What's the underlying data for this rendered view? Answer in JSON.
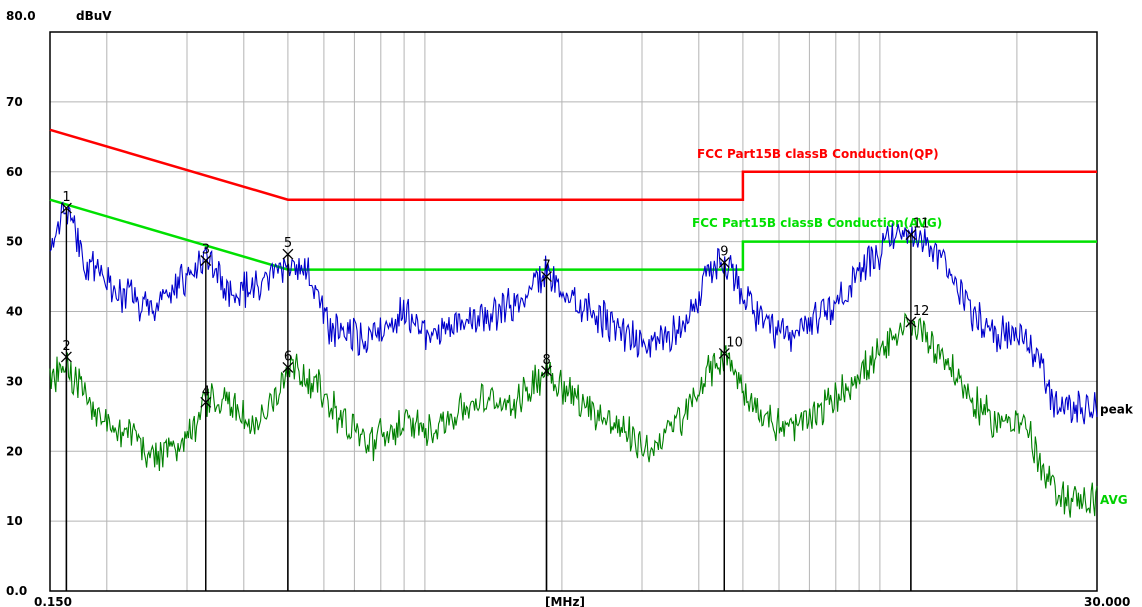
{
  "chart_data": {
    "type": "line",
    "title": "",
    "ylabel": "dBuV",
    "xlabel": "[MHz]",
    "x_scale": "log",
    "xlim": [
      0.15,
      30.0
    ],
    "ylim": [
      0,
      80
    ],
    "x_tick_labels": {
      "min": "0.150",
      "max": "30.000"
    },
    "y_ticks": [
      {
        "value": 0,
        "label": "0.0"
      },
      {
        "value": 10,
        "label": "10"
      },
      {
        "value": 20,
        "label": "20"
      },
      {
        "value": 30,
        "label": "30"
      },
      {
        "value": 40,
        "label": "40"
      },
      {
        "value": 50,
        "label": "50"
      },
      {
        "value": 60,
        "label": "60"
      },
      {
        "value": 70,
        "label": "70"
      },
      {
        "value": 80,
        "label": "80.0"
      }
    ],
    "grid": true,
    "limits": [
      {
        "label": "FCC  Part15B classB Conduction(QP)",
        "color": "#ff0000",
        "points": [
          [
            0.15,
            66
          ],
          [
            0.5,
            56
          ],
          [
            5.0,
            56
          ],
          [
            5.0,
            60
          ],
          [
            30.0,
            60
          ]
        ]
      },
      {
        "label": "FCC  Part15B classB Conduction(AVG)",
        "color": "#00e000",
        "points": [
          [
            0.15,
            56
          ],
          [
            0.5,
            46
          ],
          [
            5.0,
            46
          ],
          [
            5.0,
            50
          ],
          [
            30.0,
            50
          ]
        ]
      }
    ],
    "series": [
      {
        "name": "peak",
        "color": "#0000cc",
        "anchors": [
          [
            0.15,
            50
          ],
          [
            0.163,
            55
          ],
          [
            0.18,
            47
          ],
          [
            0.21,
            43
          ],
          [
            0.25,
            40
          ],
          [
            0.3,
            45
          ],
          [
            0.33,
            47.5
          ],
          [
            0.37,
            43
          ],
          [
            0.43,
            43
          ],
          [
            0.5,
            47
          ],
          [
            0.55,
            46
          ],
          [
            0.62,
            37
          ],
          [
            0.75,
            36
          ],
          [
            0.9,
            40
          ],
          [
            1.0,
            37
          ],
          [
            1.3,
            39
          ],
          [
            1.6,
            41
          ],
          [
            1.85,
            45.5
          ],
          [
            2.1,
            42
          ],
          [
            2.6,
            38
          ],
          [
            3.1,
            35
          ],
          [
            3.7,
            38
          ],
          [
            4.2,
            45
          ],
          [
            4.55,
            47.5
          ],
          [
            4.9,
            44
          ],
          [
            5.5,
            38
          ],
          [
            6.3,
            36
          ],
          [
            7.5,
            40
          ],
          [
            8.5,
            43
          ],
          [
            9.5,
            47
          ],
          [
            10.5,
            50
          ],
          [
            11.7,
            51.5
          ],
          [
            12.5,
            50
          ],
          [
            14,
            46
          ],
          [
            16,
            40
          ],
          [
            18,
            37
          ],
          [
            21,
            36
          ],
          [
            22.5,
            33
          ],
          [
            24,
            27
          ],
          [
            27,
            26
          ],
          [
            30,
            26
          ]
        ]
      },
      {
        "name": "AVG",
        "color": "#008000",
        "anchors": [
          [
            0.15,
            30
          ],
          [
            0.163,
            33.5
          ],
          [
            0.17,
            30
          ],
          [
            0.2,
            24
          ],
          [
            0.23,
            22
          ],
          [
            0.26,
            19
          ],
          [
            0.3,
            22
          ],
          [
            0.33,
            27
          ],
          [
            0.37,
            27
          ],
          [
            0.42,
            23
          ],
          [
            0.47,
            28
          ],
          [
            0.5,
            32.5
          ],
          [
            0.55,
            31
          ],
          [
            0.65,
            25
          ],
          [
            0.75,
            21
          ],
          [
            0.9,
            24
          ],
          [
            1.0,
            23
          ],
          [
            1.3,
            27
          ],
          [
            1.6,
            27
          ],
          [
            1.85,
            32
          ],
          [
            2.1,
            28
          ],
          [
            2.6,
            24
          ],
          [
            3.1,
            20
          ],
          [
            3.7,
            25
          ],
          [
            4.2,
            31
          ],
          [
            4.55,
            34
          ],
          [
            4.9,
            30
          ],
          [
            5.5,
            25
          ],
          [
            6.3,
            23
          ],
          [
            7.5,
            26
          ],
          [
            9,
            31
          ],
          [
            10.5,
            35
          ],
          [
            11.7,
            38.5
          ],
          [
            12.5,
            37
          ],
          [
            14,
            33
          ],
          [
            16,
            27
          ],
          [
            18,
            24
          ],
          [
            20,
            25
          ],
          [
            21.5,
            22
          ],
          [
            23,
            16
          ],
          [
            26,
            13
          ],
          [
            30,
            13
          ]
        ]
      }
    ],
    "markers": [
      {
        "label": "1",
        "x": 0.163,
        "y": 54.8
      },
      {
        "label": "2",
        "x": 0.163,
        "y": 33.5
      },
      {
        "label": "3",
        "x": 0.33,
        "y": 47.3
      },
      {
        "label": "4",
        "x": 0.33,
        "y": 27.0
      },
      {
        "label": "5",
        "x": 0.5,
        "y": 48.2
      },
      {
        "label": "6",
        "x": 0.5,
        "y": 32.0
      },
      {
        "label": "7",
        "x": 1.85,
        "y": 45.0
      },
      {
        "label": "8",
        "x": 1.85,
        "y": 31.5
      },
      {
        "label": "9",
        "x": 4.55,
        "y": 47.0
      },
      {
        "label": "10",
        "x": 4.55,
        "y": 34.0
      },
      {
        "label": "11",
        "x": 11.7,
        "y": 51.0
      },
      {
        "label": "12",
        "x": 11.7,
        "y": 38.5
      }
    ]
  }
}
